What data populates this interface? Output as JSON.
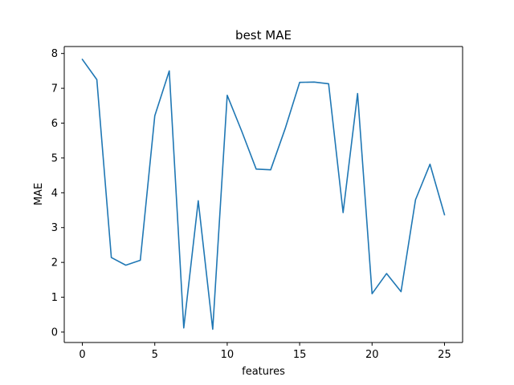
{
  "chart_data": {
    "type": "line",
    "title": "best MAE",
    "xlabel": "features",
    "ylabel": "MAE",
    "xlim": [
      -1.25,
      26.25
    ],
    "ylim": [
      -0.3,
      8.2
    ],
    "xticks": [
      0,
      5,
      10,
      15,
      20,
      25
    ],
    "yticks": [
      0,
      1,
      2,
      3,
      4,
      5,
      6,
      7,
      8
    ],
    "grid": false,
    "series": [
      {
        "color": "#1f77b4",
        "x": [
          0,
          1,
          2,
          3,
          4,
          5,
          6,
          7,
          8,
          9,
          10,
          11,
          12,
          13,
          14,
          15,
          16,
          17,
          18,
          19,
          20,
          21,
          22,
          23,
          24,
          25
        ],
        "y": [
          7.83,
          7.25,
          2.14,
          1.92,
          2.06,
          6.21,
          7.5,
          0.12,
          3.77,
          0.08,
          6.8,
          5.77,
          4.68,
          4.66,
          5.84,
          7.17,
          7.18,
          7.13,
          3.43,
          6.85,
          1.1,
          1.68,
          1.16,
          3.8,
          4.82,
          3.37
        ]
      }
    ]
  }
}
